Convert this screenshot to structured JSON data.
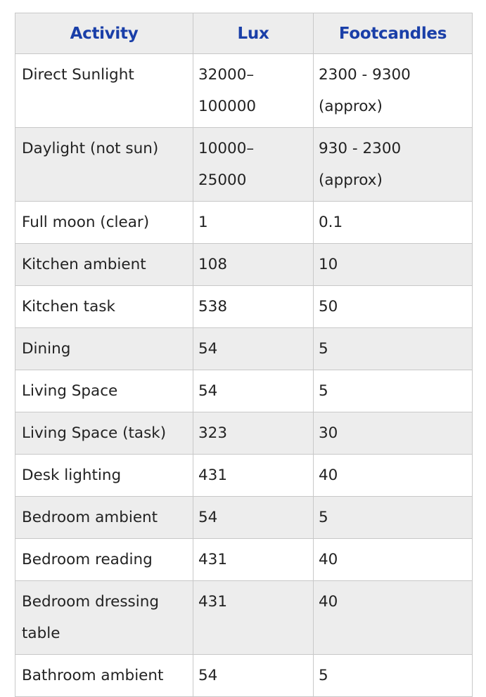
{
  "table": {
    "headers": [
      "Activity",
      "Lux",
      "Footcandles"
    ],
    "rows": [
      {
        "activity": "Direct Sunlight",
        "lux": "32000–100000",
        "lux_lines": [
          "32000–",
          "100000"
        ],
        "fc": "2300 - 9300 (approx)",
        "fc_lines": [
          "2300 - 9300",
          "(approx)"
        ]
      },
      {
        "activity": "Daylight (not sun)",
        "lux": "10000–25000",
        "lux_lines": [
          "10000–",
          "25000"
        ],
        "fc": "930 - 2300 (approx)",
        "fc_lines": [
          "930 - 2300",
          "(approx)"
        ]
      },
      {
        "activity": "Full moon (clear)",
        "lux": "1",
        "fc": "0.1"
      },
      {
        "activity": "Kitchen ambient",
        "lux": "108",
        "fc": "10"
      },
      {
        "activity": "Kitchen task",
        "lux": "538",
        "fc": "50"
      },
      {
        "activity": "Dining",
        "lux": "54",
        "fc": "5"
      },
      {
        "activity": "Living Space",
        "lux": "54",
        "fc": "5"
      },
      {
        "activity": "Living Space (task)",
        "lux": "323",
        "fc": "30"
      },
      {
        "activity": "Desk lighting",
        "lux": "431",
        "fc": "40"
      },
      {
        "activity": "Bedroom ambient",
        "lux": "54",
        "fc": "5"
      },
      {
        "activity": "Bedroom reading",
        "lux": "431",
        "fc": "40"
      },
      {
        "activity": "Bedroom dressing table",
        "activity_lines": [
          "Bedroom dressing",
          "table"
        ],
        "lux": "431",
        "fc": "40"
      },
      {
        "activity": "Bathroom ambient",
        "lux": "54",
        "fc": "5"
      }
    ]
  }
}
